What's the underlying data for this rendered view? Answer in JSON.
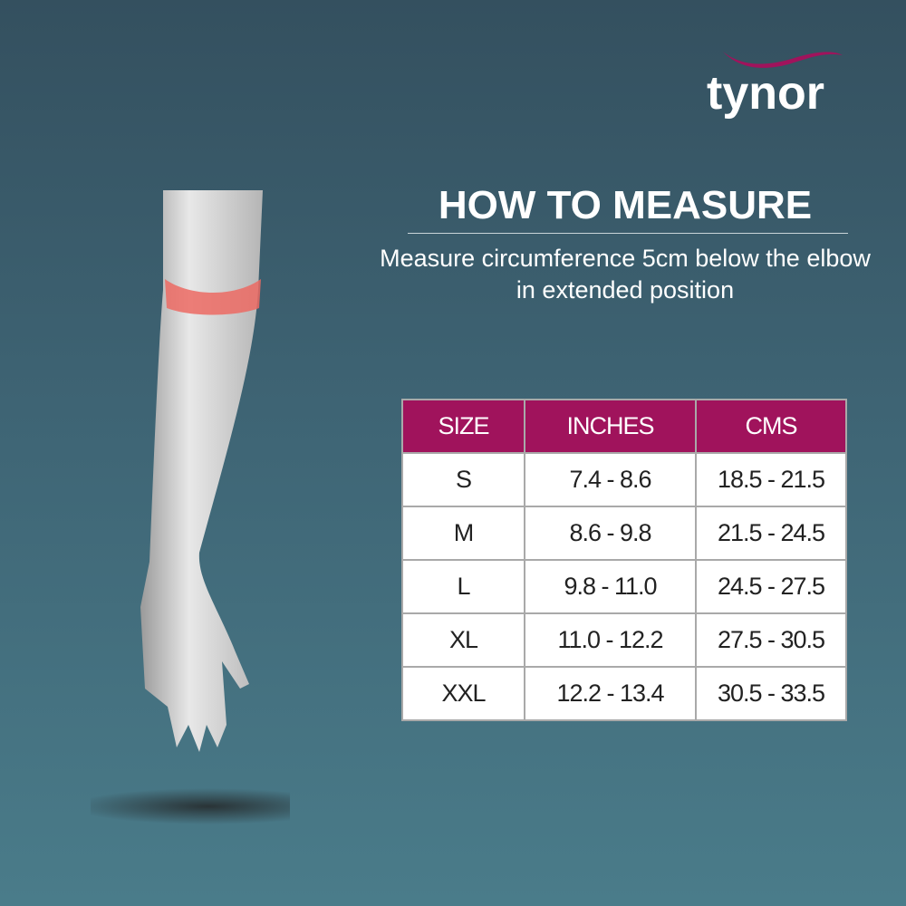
{
  "brand": {
    "logo_text": "tynor",
    "accent": "#a0135c"
  },
  "heading": {
    "title": "HOW TO MEASURE",
    "instruction": "Measure circumference 5cm below the elbow in extended position"
  },
  "size_table": {
    "headers": [
      "SIZE",
      "INCHES",
      "CMS"
    ],
    "rows": [
      [
        "S",
        "7.4 - 8.6",
        "18.5 - 21.5"
      ],
      [
        "M",
        "8.6 - 9.8",
        "21.5 - 24.5"
      ],
      [
        "L",
        "9.8 - 11.0",
        "24.5 - 27.5"
      ],
      [
        "XL",
        "11.0 - 12.2",
        "27.5 - 30.5"
      ],
      [
        "XXL",
        "12.2 - 13.4",
        "30.5 - 33.5"
      ]
    ]
  },
  "illustration": {
    "icon": "arm-measure-arrows-icon"
  }
}
